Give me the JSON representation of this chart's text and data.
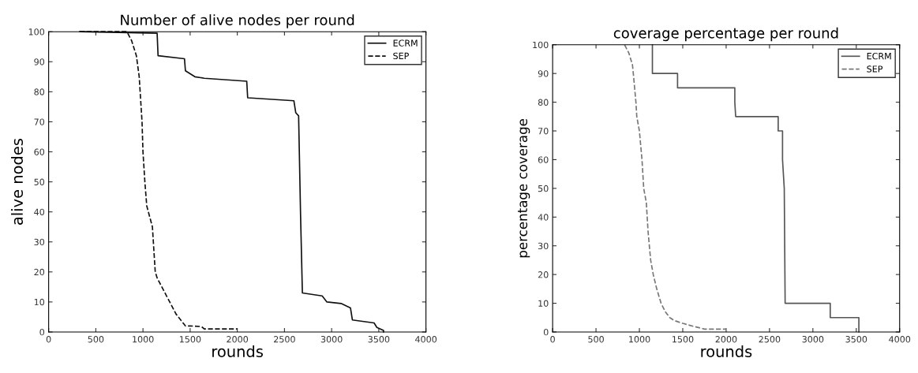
{
  "chart_data": [
    {
      "type": "line",
      "title": "Number of alive nodes per round",
      "xlabel": "rounds",
      "ylabel": "alive nodes",
      "xlim": [
        0,
        4000
      ],
      "ylim": [
        0,
        100
      ],
      "xticks": [
        0,
        500,
        1000,
        1500,
        2000,
        2500,
        3000,
        3500,
        4000
      ],
      "yticks": [
        0,
        10,
        20,
        30,
        40,
        50,
        60,
        70,
        80,
        90,
        100
      ],
      "grid": false,
      "legend": "top right",
      "series": [
        {
          "name": "ECRM",
          "color": "#111111",
          "line_style": "solid",
          "x": [
            330,
            1150,
            1160,
            1440,
            1450,
            1550,
            1650,
            2100,
            2110,
            2600,
            2620,
            2650,
            2670,
            2690,
            2900,
            2950,
            3100,
            3200,
            3220,
            3450,
            3480,
            3550,
            3550
          ],
          "values": [
            100,
            99.5,
            92,
            91,
            87,
            85,
            84.5,
            83.5,
            78,
            77,
            73,
            72,
            40,
            13,
            12,
            10,
            9.5,
            8,
            4,
            3,
            1.5,
            0.5,
            0
          ]
        },
        {
          "name": "SEP",
          "color": "#111111",
          "line_style": "dashed",
          "x": [
            330,
            830,
            880,
            930,
            960,
            970,
            990,
            1000,
            1020,
            1040,
            1100,
            1110,
            1130,
            1150,
            1200,
            1250,
            1300,
            1350,
            1400,
            1450,
            1500,
            1620,
            1650,
            2000
          ],
          "values": [
            100,
            100,
            97,
            92,
            85,
            80,
            70,
            60,
            50,
            42,
            35,
            30,
            20,
            18,
            15,
            12,
            9,
            6,
            4,
            2,
            2,
            1.8,
            1,
            1
          ]
        }
      ]
    },
    {
      "type": "line",
      "title": "coverage percentage per round",
      "xlabel": "rounds",
      "ylabel": "percentage coverage",
      "xlim": [
        0,
        4000
      ],
      "ylim": [
        0,
        100
      ],
      "xticks": [
        0,
        500,
        1000,
        1500,
        2000,
        2500,
        3000,
        3500,
        4000
      ],
      "yticks": [
        0,
        10,
        20,
        30,
        40,
        50,
        60,
        70,
        80,
        90,
        100
      ],
      "grid": false,
      "legend": "top right",
      "series": [
        {
          "name": "ECRM",
          "color": "#555555",
          "line_style": "solid",
          "x": [
            1150,
            1150,
            1440,
            1440,
            2100,
            2100,
            2110,
            2600,
            2600,
            2650,
            2650,
            2670,
            2680,
            3200,
            3200,
            3530,
            3530
          ],
          "values": [
            100,
            90,
            90,
            85,
            85,
            80,
            75,
            75,
            70,
            70,
            60,
            50,
            10,
            10,
            5,
            5,
            0
          ]
        },
        {
          "name": "SEP",
          "color": "#777777",
          "line_style": "dashed",
          "x": [
            830,
            880,
            920,
            930,
            960,
            970,
            1000,
            1030,
            1050,
            1080,
            1100,
            1130,
            1160,
            1200,
            1250,
            1300,
            1350,
            1400,
            1500,
            1620,
            1750,
            2000
          ],
          "values": [
            100,
            97,
            93,
            90,
            80,
            75,
            70,
            60,
            50,
            45,
            35,
            25,
            20,
            15,
            10,
            7,
            5,
            4,
            3,
            2,
            1,
            1
          ]
        }
      ]
    }
  ]
}
